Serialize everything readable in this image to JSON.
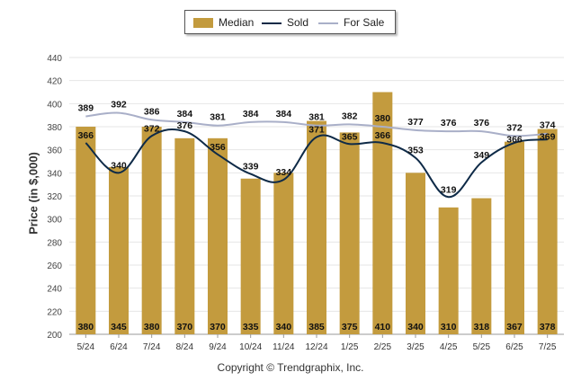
{
  "legend": {
    "median": "Median",
    "sold": "Sold",
    "for_sale": "For Sale"
  },
  "copyright": "Copyright © Trendgraphix, Inc.",
  "colors": {
    "median_bar": "#C39B3E",
    "sold_line": "#0E2A47",
    "for_sale_line": "#A9AFC8",
    "grid": "#e6e6e6"
  },
  "chart_data": {
    "type": "bar",
    "title": "",
    "xlabel": "",
    "ylabel": "Price (in $,000)",
    "ylim": [
      200,
      440
    ],
    "yticks": [
      200,
      220,
      240,
      260,
      280,
      300,
      320,
      340,
      360,
      380,
      400,
      420,
      440
    ],
    "categories": [
      "5/24",
      "6/24",
      "7/24",
      "8/24",
      "9/24",
      "10/24",
      "11/24",
      "12/24",
      "1/25",
      "2/25",
      "3/25",
      "4/25",
      "5/25",
      "6/25",
      "7/25"
    ],
    "series": [
      {
        "name": "Median",
        "type": "bar",
        "values": [
          380,
          345,
          380,
          370,
          370,
          335,
          340,
          385,
          375,
          410,
          340,
          310,
          318,
          367,
          378
        ]
      },
      {
        "name": "Sold",
        "type": "line",
        "values": [
          366,
          340,
          372,
          376,
          356,
          339,
          334,
          371,
          365,
          366,
          353,
          319,
          349,
          366,
          369
        ]
      },
      {
        "name": "For Sale",
        "type": "line",
        "values": [
          389,
          392,
          386,
          384,
          381,
          384,
          384,
          381,
          382,
          380,
          377,
          376,
          376,
          372,
          374
        ]
      }
    ],
    "grid": true,
    "legend_position": "top-center"
  }
}
